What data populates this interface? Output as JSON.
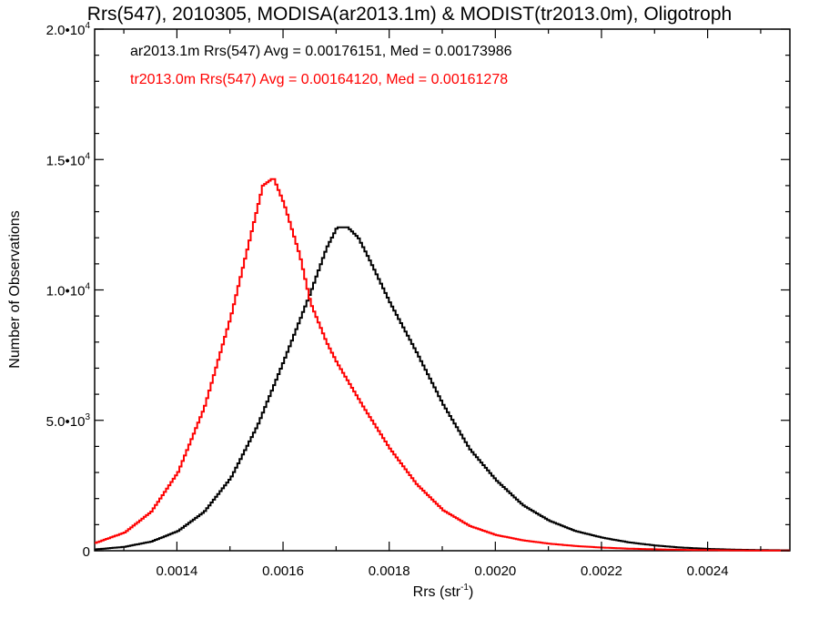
{
  "chart_data": {
    "type": "line",
    "step": true,
    "title": "Rrs(547), 2010305, MODISA(ar2013.1m) & MODIST(tr2013.0m), Oligotroph",
    "xlabel": "Rrs (str⁻¹)",
    "xlabel_main": "Rrs (str",
    "xlabel_sup": "-1",
    "xlabel_close": ")",
    "ylabel": "Number of Observations",
    "xlim": [
      0.001245,
      0.002555
    ],
    "ylim": [
      0,
      20000
    ],
    "grid": false,
    "x_ticks": [
      {
        "value": 0.0014,
        "label": "0.0014"
      },
      {
        "value": 0.0016,
        "label": "0.0016"
      },
      {
        "value": 0.0018,
        "label": "0.0018"
      },
      {
        "value": 0.002,
        "label": "0.0020"
      },
      {
        "value": 0.0022,
        "label": "0.0022"
      },
      {
        "value": 0.0024,
        "label": "0.0024"
      }
    ],
    "y_ticks": [
      {
        "value": 0,
        "base": "0",
        "exp": ""
      },
      {
        "value": 5000,
        "base": "5.0•10",
        "exp": "3"
      },
      {
        "value": 10000,
        "base": "1.0•10",
        "exp": "4"
      },
      {
        "value": 15000,
        "base": "1.5•10",
        "exp": "4"
      },
      {
        "value": 20000,
        "base": "2.0•10",
        "exp": "4"
      }
    ],
    "annotations": [
      {
        "text": "ar2013.1m Rrs(547) Avg = 0.00176151, Med = 0.00173986",
        "color": "#000000"
      },
      {
        "text": "tr2013.0m Rrs(547) Avg = 0.00164120, Med = 0.00161278",
        "color": "#ff0000"
      }
    ],
    "series": [
      {
        "color": "#000000",
        "points": [
          [
            0.001245,
            50
          ],
          [
            0.0013,
            150
          ],
          [
            0.00135,
            350
          ],
          [
            0.0014,
            750
          ],
          [
            0.00145,
            1500
          ],
          [
            0.0015,
            2800
          ],
          [
            0.00155,
            4800
          ],
          [
            0.0016,
            7300
          ],
          [
            0.00165,
            9900
          ],
          [
            0.00168,
            11600
          ],
          [
            0.0017,
            12400
          ],
          [
            0.00172,
            12400
          ],
          [
            0.00174,
            12000
          ],
          [
            0.00176,
            11200
          ],
          [
            0.0018,
            9500
          ],
          [
            0.00185,
            7600
          ],
          [
            0.0019,
            5600
          ],
          [
            0.00195,
            3900
          ],
          [
            0.002,
            2700
          ],
          [
            0.00205,
            1750
          ],
          [
            0.0021,
            1150
          ],
          [
            0.00215,
            750
          ],
          [
            0.0022,
            500
          ],
          [
            0.00225,
            320
          ],
          [
            0.0023,
            200
          ],
          [
            0.00235,
            120
          ],
          [
            0.0024,
            70
          ],
          [
            0.00245,
            40
          ],
          [
            0.0025,
            25
          ],
          [
            0.002555,
            15
          ]
        ]
      },
      {
        "color": "#ff0000",
        "points": [
          [
            0.001245,
            300
          ],
          [
            0.0013,
            700
          ],
          [
            0.00135,
            1500
          ],
          [
            0.0014,
            3000
          ],
          [
            0.00145,
            5500
          ],
          [
            0.0015,
            9000
          ],
          [
            0.00153,
            11500
          ],
          [
            0.00156,
            14000
          ],
          [
            0.00158,
            14300
          ],
          [
            0.0016,
            13300
          ],
          [
            0.00163,
            11300
          ],
          [
            0.00165,
            9500
          ],
          [
            0.00168,
            8000
          ],
          [
            0.0017,
            7200
          ],
          [
            0.00175,
            5500
          ],
          [
            0.0018,
            3900
          ],
          [
            0.00185,
            2550
          ],
          [
            0.0019,
            1550
          ],
          [
            0.00195,
            950
          ],
          [
            0.002,
            600
          ],
          [
            0.00205,
            400
          ],
          [
            0.0021,
            270
          ],
          [
            0.00215,
            180
          ],
          [
            0.0022,
            120
          ],
          [
            0.00225,
            80
          ],
          [
            0.0023,
            55
          ],
          [
            0.00235,
            35
          ],
          [
            0.0024,
            22
          ],
          [
            0.00245,
            14
          ],
          [
            0.0025,
            9
          ],
          [
            0.002555,
            6
          ]
        ]
      }
    ]
  }
}
